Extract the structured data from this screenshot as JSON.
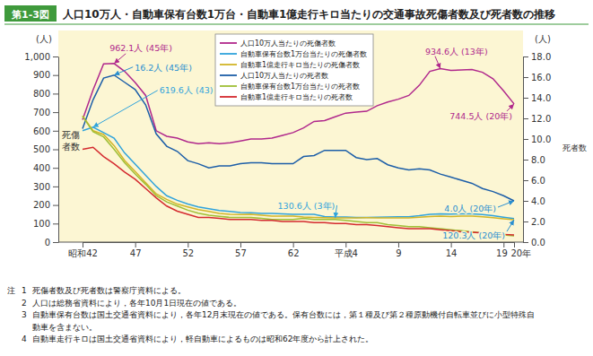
{
  "chart_data": {
    "type": "line",
    "figure_label": "第1-3図",
    "title": "人口10万人・自動車保有台数1万台・自動車1億走行キロ当たりの交通事故死傷者数及び死者数の推移",
    "y_unit": "(人)",
    "y2_unit": "(人)",
    "y_label": "死傷者数",
    "y2_label": "死者数",
    "categories": [
      "昭和42",
      null,
      null,
      null,
      null,
      "47",
      null,
      null,
      null,
      null,
      "52",
      null,
      null,
      null,
      null,
      "57",
      null,
      null,
      null,
      null,
      "62",
      null,
      null,
      null,
      null,
      "平成4",
      null,
      null,
      null,
      null,
      "9",
      null,
      null,
      null,
      null,
      "14",
      null,
      null,
      null,
      null,
      "19",
      "20年"
    ],
    "ylim": [
      0,
      1000
    ],
    "yticks": [
      0,
      100,
      200,
      300,
      400,
      500,
      600,
      700,
      800,
      900,
      {
        "value": 1000,
        "label": "1,000"
      }
    ],
    "y2lim": [
      0,
      18
    ],
    "y2ticks": [
      {
        "value": 0,
        "label": "0.0"
      },
      {
        "value": 2,
        "label": "2.0"
      },
      {
        "value": 4,
        "label": "4.0"
      },
      {
        "value": 6,
        "label": "6.0"
      },
      {
        "value": 8,
        "label": "8.0"
      },
      {
        "value": 10,
        "label": "10.0"
      },
      {
        "value": 12,
        "label": "12.0"
      },
      {
        "value": 14,
        "label": "14.0"
      },
      {
        "value": 16,
        "label": "16.0"
      },
      {
        "value": 18,
        "label": "18.0"
      }
    ],
    "grid": false,
    "legend": "top",
    "series": [
      {
        "name": "人口10万人当たりの死傷者数",
        "color": "#b0288c",
        "values": [
          660,
          820,
          960,
          962.1,
          920,
          860,
          790,
          600,
          570,
          560,
          540,
          530,
          535,
          530,
          535,
          545,
          555,
          555,
          560,
          575,
          590,
          615,
          650,
          655,
          675,
          695,
          700,
          705,
          735,
          755,
          770,
          790,
          845,
          920,
          934.6,
          925,
          928,
          930,
          915,
          880,
          815,
          744.5
        ]
      },
      {
        "name": "自動車保有台数1万台当たりの死傷者数",
        "color": "#2fa3dc",
        "values": [
          600,
          619.6,
          590,
          560,
          480,
          420,
          360,
          300,
          250,
          225,
          205,
          190,
          180,
          170,
          165,
          160,
          158,
          155,
          155,
          152,
          150,
          150,
          150,
          138,
          135,
          135,
          133,
          133,
          134,
          135,
          137,
          137,
          142,
          150,
          152,
          151,
          152,
          152,
          148,
          142,
          134,
          127
        ]
      },
      {
        "name": "自動車1億走行キロ当たりの死傷者数",
        "color": "#d2b528",
        "values": [
          680,
          600,
          580,
          520,
          440,
          380,
          320,
          260,
          230,
          205,
          190,
          175,
          165,
          155,
          150,
          148,
          150,
          145,
          140,
          140,
          140,
          135,
          133,
          132,
          130.6,
          131,
          131,
          131.5,
          131,
          131,
          131,
          131,
          134,
          138,
          140,
          138,
          140,
          140,
          137,
          132,
          126,
          120.3
        ]
      },
      {
        "name": "人口10万人当たりの死者数",
        "color": "#1c5ea8",
        "axis": "y2",
        "values": [
          11.0,
          13.8,
          15.9,
          16.2,
          15.5,
          14.8,
          13.3,
          10.5,
          9.3,
          8.8,
          7.9,
          7.6,
          7.2,
          7.4,
          7.4,
          7.6,
          7.7,
          7.7,
          7.6,
          7.6,
          7.6,
          8.3,
          8.4,
          8.9,
          8.9,
          8.9,
          8.2,
          8.0,
          8.1,
          7.5,
          7.2,
          7.0,
          7.1,
          7.0,
          6.6,
          6.3,
          6.0,
          5.7,
          5.2,
          4.9,
          4.5,
          4.0
        ]
      },
      {
        "name": "自動車保有台数1万台当たりの死者数",
        "color": "#9fbf36",
        "axis": "y2",
        "values": [
          12.2,
          10.7,
          10.2,
          9.0,
          7.7,
          6.6,
          5.6,
          4.5,
          3.9,
          3.5,
          3.1,
          2.8,
          2.6,
          2.5,
          2.4,
          2.4,
          2.4,
          2.3,
          2.2,
          2.2,
          2.2,
          2.3,
          2.2,
          2.2,
          2.2,
          2.1,
          2.0,
          1.9,
          1.9,
          1.7,
          1.6,
          1.5,
          1.5,
          1.4,
          1.3,
          1.2,
          1.1,
          1.0,
          0.9,
          0.8,
          0.7,
          0.6
        ]
      },
      {
        "name": "自動車1億走行キロ当たりの死者数",
        "color": "#d42a2f",
        "axis": "y2",
        "values": [
          9.0,
          9.2,
          8.3,
          7.6,
          6.8,
          6.1,
          5.2,
          4.3,
          3.5,
          3.0,
          2.7,
          2.4,
          2.4,
          2.3,
          2.2,
          2.2,
          2.2,
          2.1,
          2.1,
          2.0,
          2.0,
          2.0,
          1.9,
          1.9,
          1.8,
          1.8,
          1.7,
          1.7,
          1.6,
          1.5,
          1.4,
          1.3,
          1.3,
          1.3,
          1.2,
          1.1,
          1.0,
          0.95,
          0.9,
          0.8,
          0.75,
          0.7
        ]
      }
    ],
    "annotations": [
      {
        "text": "962.1人 (45年)",
        "series": 0,
        "index": 3,
        "color": "#b0288c"
      },
      {
        "text": "16.2人 (45年)",
        "series": 3,
        "index": 3,
        "color": "#2a8fd0"
      },
      {
        "text": "619.6人 (43)",
        "series": 1,
        "index": 1,
        "color": "#2fa3dc"
      },
      {
        "text": "934.6人 (13年)",
        "series": 0,
        "index": 34,
        "color": "#b0288c"
      },
      {
        "text": "744.5人 (20年)",
        "series": 0,
        "index": 41,
        "color": "#b0288c"
      },
      {
        "text": "130.6人 (3年)",
        "series": 2,
        "index": 24,
        "color": "#2fa3dc"
      },
      {
        "text": "4.0人 (20年)",
        "series": 3,
        "index": 41,
        "color": "#2a8fd0"
      },
      {
        "text": "120.3人 (20年)",
        "series": 2,
        "index": 41,
        "color": "#2a8fd0"
      }
    ],
    "notes_heading": "注",
    "notes": [
      {
        "number": 1,
        "lines": [
          "死傷者数及び死者数は警察庁資料による。"
        ]
      },
      {
        "number": 2,
        "lines": [
          "人口は総務省資料により，各年10月1日現在の値である。"
        ]
      },
      {
        "number": 3,
        "lines": [
          "自動車保有台数は国土交通省資料により，各年12月末現在の値である。保有台数には，第１種及び第２種原動機付自転車並びに小型特殊自",
          "動車を含まない。"
        ]
      },
      {
        "number": 4,
        "lines": [
          "自動車走行キロは国土交通省資料により，軽自動車によるものは昭和62年度から計上された。"
        ]
      }
    ]
  }
}
